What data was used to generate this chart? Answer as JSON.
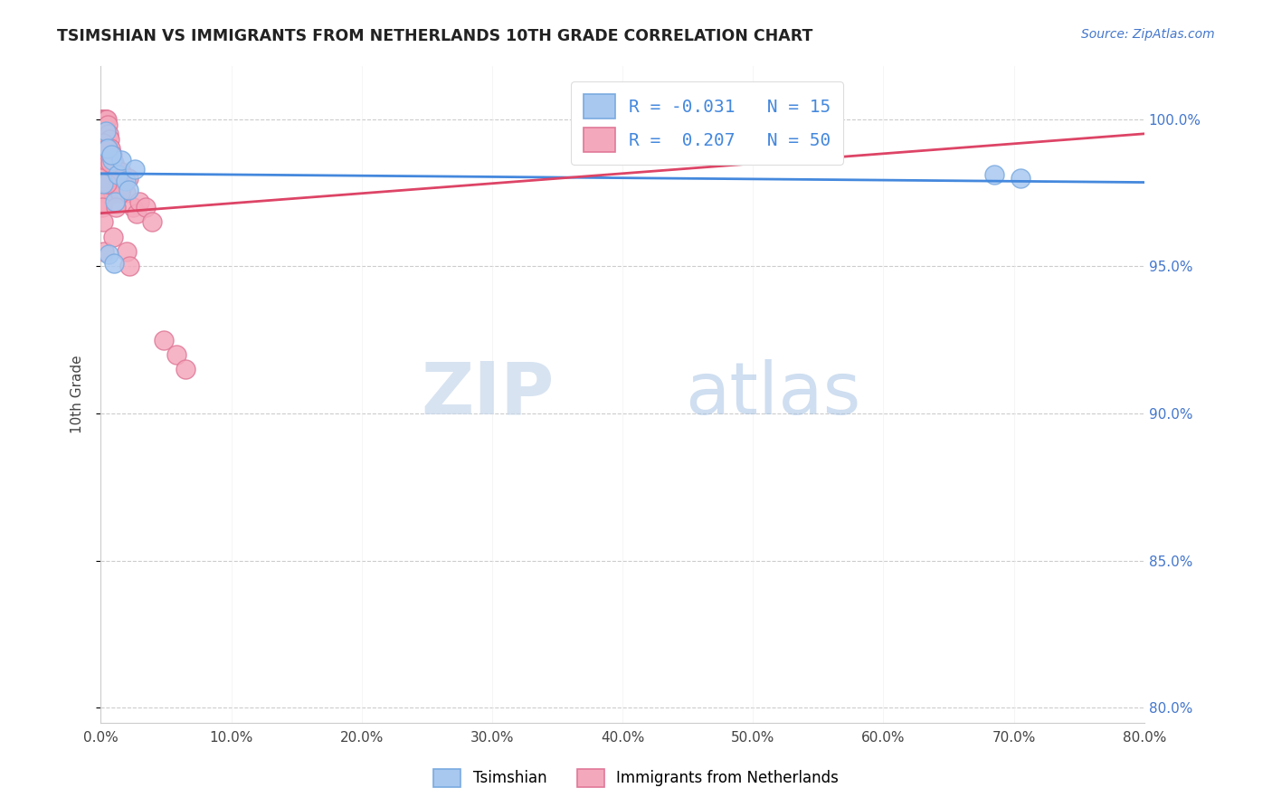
{
  "title": "TSIMSHIAN VS IMMIGRANTS FROM NETHERLANDS 10TH GRADE CORRELATION CHART",
  "source": "Source: ZipAtlas.com",
  "xlabel_ticks": [
    "0.0%",
    "10.0%",
    "20.0%",
    "30.0%",
    "40.0%",
    "50.0%",
    "60.0%",
    "70.0%",
    "80.0%"
  ],
  "ylabel_ticks": [
    "80.0%",
    "85.0%",
    "90.0%",
    "95.0%",
    "100.0%"
  ],
  "xlabel_vals": [
    0.0,
    10.0,
    20.0,
    30.0,
    40.0,
    50.0,
    60.0,
    70.0,
    80.0
  ],
  "ylabel_vals": [
    80.0,
    85.0,
    90.0,
    95.0,
    100.0
  ],
  "xmin": 0.0,
  "xmax": 80.0,
  "ymin": 79.5,
  "ymax": 101.8,
  "blue_color": "#A8C8F0",
  "pink_color": "#F4A8BC",
  "blue_edge": "#7AAAE0",
  "pink_edge": "#E07898",
  "trend_blue": "#4488DD",
  "trend_pink": "#DD4466",
  "R_blue": -0.031,
  "N_blue": 15,
  "R_pink": 0.207,
  "N_pink": 50,
  "blue_trend_x": [
    0.0,
    80.0
  ],
  "blue_trend_y": [
    98.15,
    97.85
  ],
  "pink_trend_x": [
    0.0,
    80.0
  ],
  "pink_trend_y": [
    96.8,
    99.5
  ],
  "blue_x": [
    0.2,
    0.4,
    0.9,
    1.1,
    1.3,
    1.6,
    1.9,
    2.1,
    2.6,
    0.5,
    0.8,
    68.5,
    70.5,
    0.6,
    1.0
  ],
  "blue_y": [
    97.8,
    99.6,
    98.6,
    97.2,
    98.1,
    98.6,
    97.9,
    97.6,
    98.3,
    99.0,
    98.8,
    98.1,
    98.0,
    95.4,
    95.1
  ],
  "pink_x": [
    0.08,
    0.12,
    0.18,
    0.22,
    0.28,
    0.32,
    0.38,
    0.42,
    0.48,
    0.52,
    0.58,
    0.65,
    0.75,
    0.85,
    0.95,
    1.05,
    1.15,
    1.35,
    1.55,
    1.75,
    1.95,
    2.15,
    2.45,
    2.75,
    2.95,
    3.45,
    3.95,
    0.18,
    0.28,
    0.38,
    0.48,
    0.58,
    0.78,
    0.98,
    1.28,
    1.48,
    1.98,
    2.18,
    0.08,
    0.18,
    0.28,
    0.48,
    4.8,
    5.8,
    0.12,
    0.22,
    0.95,
    1.15,
    6.5,
    0.75
  ],
  "pink_y": [
    100.0,
    100.0,
    100.0,
    100.0,
    100.0,
    100.0,
    100.0,
    100.0,
    100.0,
    99.8,
    99.5,
    99.3,
    99.0,
    98.8,
    98.5,
    98.5,
    98.3,
    98.0,
    98.2,
    97.8,
    97.5,
    98.0,
    97.0,
    96.8,
    97.2,
    97.0,
    96.5,
    99.2,
    98.8,
    97.5,
    99.0,
    98.5,
    97.8,
    97.5,
    98.0,
    97.5,
    95.5,
    95.0,
    98.0,
    97.2,
    95.5,
    97.8,
    92.5,
    92.0,
    97.0,
    96.5,
    96.0,
    97.0,
    91.5,
    98.5
  ],
  "watermark_zip": "ZIP",
  "watermark_atlas": "atlas",
  "ylabel": "10th Grade",
  "legend_label_blue": "Tsimshian",
  "legend_label_pink": "Immigrants from Netherlands"
}
